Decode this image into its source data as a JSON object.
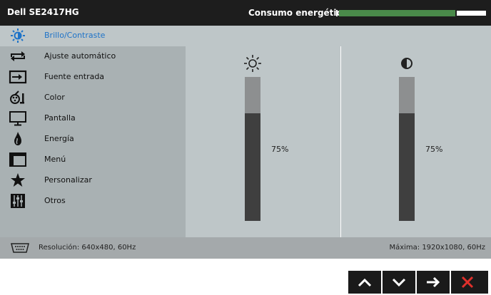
{
  "titlebar": {
    "model": "Dell SE2417HG",
    "energy_label": "Consumo energético",
    "energy_level": 0.8,
    "colors": {
      "bar": "#1d1d1d",
      "meter_green": "#4a8a4a"
    }
  },
  "menu": {
    "items": [
      {
        "label": "Brillo/Contraste",
        "icon": "brightness-icon",
        "active": true
      },
      {
        "label": "Ajuste  automático",
        "icon": "auto-adjust-icon"
      },
      {
        "label": "Fuente entrada",
        "icon": "input-source-icon"
      },
      {
        "label": "Color",
        "icon": "color-icon"
      },
      {
        "label": "Pantalla",
        "icon": "display-icon"
      },
      {
        "label": "Energía",
        "icon": "energy-icon"
      },
      {
        "label": "Menú",
        "icon": "menu-icon"
      },
      {
        "label": "Personalizar",
        "icon": "star-icon"
      },
      {
        "label": "Otros",
        "icon": "others-icon"
      }
    ],
    "active_color": "#1e73c8"
  },
  "sliders": {
    "brightness": {
      "icon": "sun-icon",
      "value": 75,
      "value_label": "75%"
    },
    "contrast": {
      "icon": "contrast-icon",
      "value": 75,
      "value_label": "75%"
    }
  },
  "statusbar": {
    "resolution": "Resolución: 640x480, 60Hz",
    "maximum": "Máxima: 1920x1080, 60Hz",
    "icon": "vga-icon"
  },
  "buttons": [
    {
      "name": "up-button",
      "icon": "chevron-up-icon"
    },
    {
      "name": "down-button",
      "icon": "chevron-down-icon"
    },
    {
      "name": "enter-button",
      "icon": "arrow-right-icon"
    },
    {
      "name": "exit-button",
      "icon": "close-icon",
      "color": "#e0302b"
    }
  ]
}
